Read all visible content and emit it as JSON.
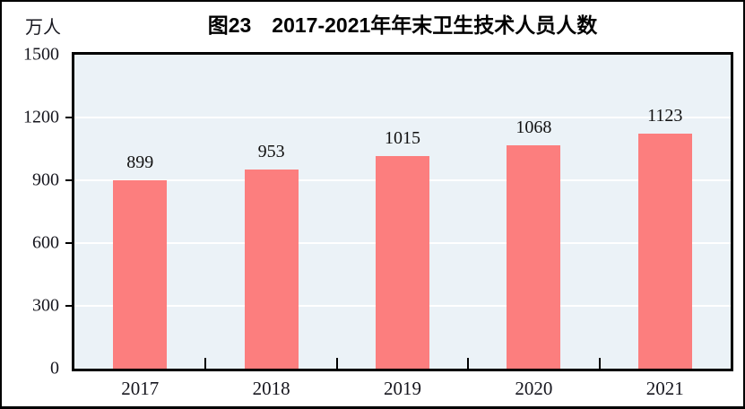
{
  "figure": {
    "title": "图23　2017-2021年年末卫生技术人员人数",
    "unit_label": "万人"
  },
  "chart_data": {
    "type": "bar",
    "title": "图23　2017-2021年年末卫生技术人员人数",
    "ylabel": "万人",
    "xlabel": "",
    "categories": [
      "2017",
      "2018",
      "2019",
      "2020",
      "2021"
    ],
    "values": [
      899,
      953,
      1015,
      1068,
      1123
    ],
    "ylim": [
      0,
      1500
    ],
    "yticks": [
      0,
      300,
      600,
      900,
      1200,
      1500
    ],
    "grid": true,
    "legend": "none",
    "colors": {
      "bar": "#FC7E7E",
      "plot_background": "#EBF2F7",
      "grid_line": "#FFFFFF",
      "axis": "#000000",
      "text": "#16161E"
    }
  }
}
